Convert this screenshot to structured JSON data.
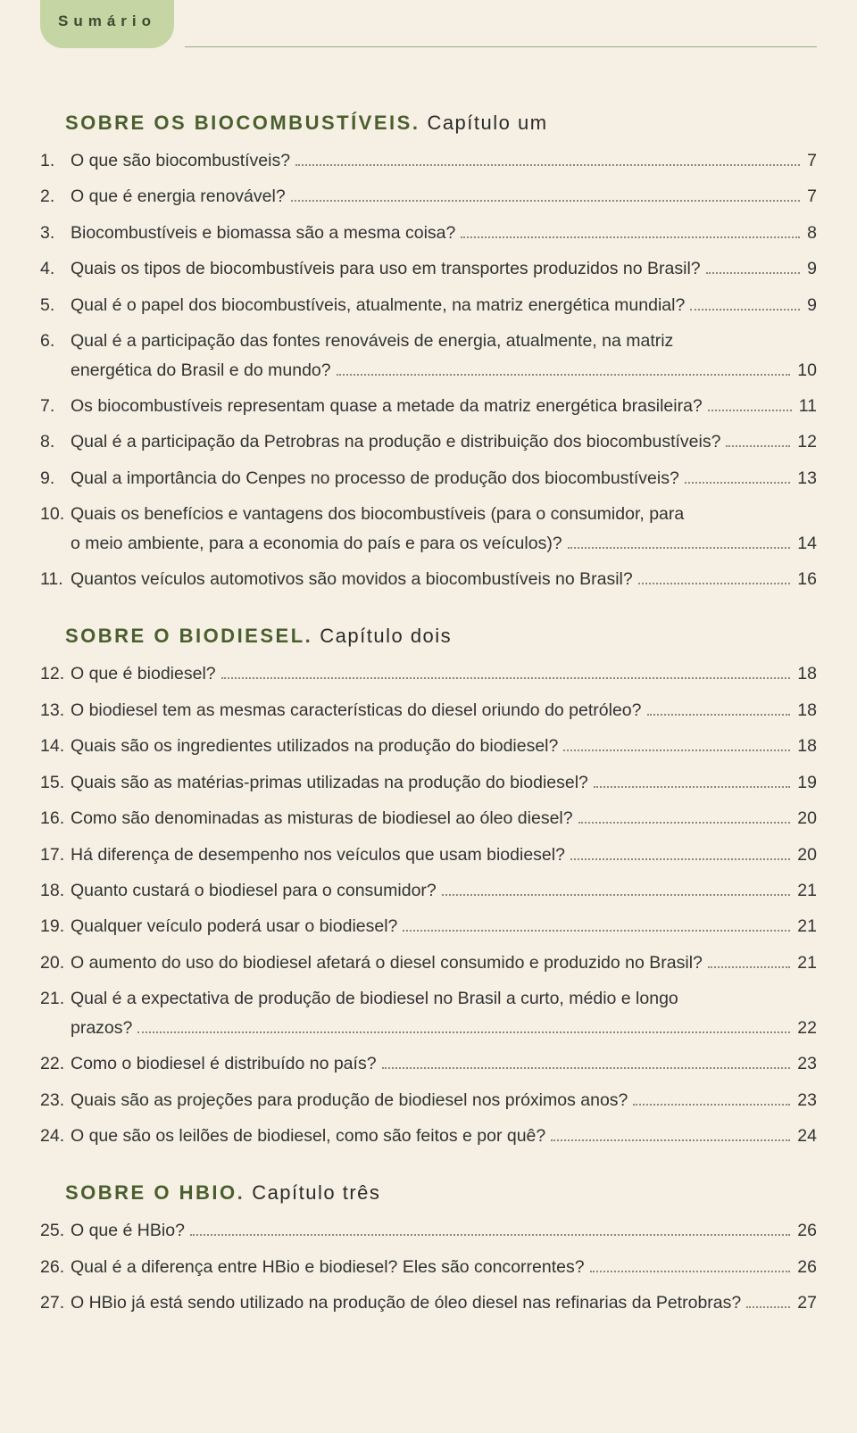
{
  "badge_label": "Sumário",
  "sections": [
    {
      "title_main": "SOBRE OS BIOCOMBUSTÍVEIS.",
      "title_sub": "Capítulo um",
      "items": [
        {
          "num": "1.",
          "lines": [
            "O que são biocombustíveis?"
          ],
          "page": "7"
        },
        {
          "num": "2.",
          "lines": [
            "O que é energia renovável?"
          ],
          "page": "7"
        },
        {
          "num": "3.",
          "lines": [
            "Biocombustíveis e biomassa são a mesma coisa?"
          ],
          "page": "8"
        },
        {
          "num": "4.",
          "lines": [
            "Quais os tipos de biocombustíveis para uso em transportes produzidos no Brasil?"
          ],
          "page": "9"
        },
        {
          "num": "5.",
          "lines": [
            "Qual é o papel dos biocombustíveis, atualmente, na matriz energética mundial?"
          ],
          "page": "9"
        },
        {
          "num": "6.",
          "lines": [
            "Qual é a participação das fontes renováveis de energia, atualmente, na matriz",
            "energética do Brasil e do mundo?"
          ],
          "page": "10"
        },
        {
          "num": "7.",
          "lines": [
            "Os biocombustíveis representam quase a metade da matriz energética brasileira?"
          ],
          "page": "11"
        },
        {
          "num": "8.",
          "lines": [
            "Qual é a participação da Petrobras na produção e distribuição dos biocombustíveis?"
          ],
          "page": "12"
        },
        {
          "num": "9.",
          "lines": [
            "Qual a importância do Cenpes no processo de produção dos biocombustíveis?"
          ],
          "page": "13"
        },
        {
          "num": "10.",
          "lines": [
            "Quais os benefícios e vantagens dos biocombustíveis (para o consumidor, para",
            "o meio ambiente, para a economia do país e para os veículos)?"
          ],
          "page": "14"
        },
        {
          "num": "11.",
          "lines": [
            "Quantos veículos automotivos são movidos a biocombustíveis no Brasil?"
          ],
          "page": "16"
        }
      ]
    },
    {
      "title_main": "SOBRE O BIODIESEL.",
      "title_sub": "Capítulo dois",
      "items": [
        {
          "num": "12.",
          "lines": [
            "O que é biodiesel?"
          ],
          "page": "18"
        },
        {
          "num": "13.",
          "lines": [
            "O biodiesel tem as mesmas características do diesel oriundo do petróleo?"
          ],
          "page": "18"
        },
        {
          "num": "14.",
          "lines": [
            "Quais são os ingredientes utilizados na produção do biodiesel?"
          ],
          "page": "18"
        },
        {
          "num": "15.",
          "lines": [
            "Quais são as matérias-primas utilizadas na produção do biodiesel?"
          ],
          "page": "19"
        },
        {
          "num": "16.",
          "lines": [
            "Como são denominadas as misturas de biodiesel ao óleo diesel?"
          ],
          "page": "20"
        },
        {
          "num": "17.",
          "lines": [
            "Há diferença de desempenho nos veículos que usam biodiesel?"
          ],
          "page": "20"
        },
        {
          "num": "18.",
          "lines": [
            "Quanto custará o biodiesel para o consumidor?"
          ],
          "page": "21"
        },
        {
          "num": "19.",
          "lines": [
            "Qualquer veículo poderá usar o biodiesel?"
          ],
          "page": "21"
        },
        {
          "num": "20.",
          "lines": [
            "O aumento do uso do biodiesel afetará o diesel consumido e produzido no Brasil?"
          ],
          "page": "21"
        },
        {
          "num": "21.",
          "lines": [
            "Qual é a expectativa de produção de biodiesel no Brasil a curto, médio e longo",
            "prazos?"
          ],
          "page": "22"
        },
        {
          "num": "22.",
          "lines": [
            "Como o biodiesel é distribuído no país?"
          ],
          "page": "23"
        },
        {
          "num": "23.",
          "lines": [
            "Quais são as projeções para produção de biodiesel nos próximos anos?"
          ],
          "page": "23"
        },
        {
          "num": "24.",
          "lines": [
            "O que são os leilões de biodiesel, como são feitos e por quê?"
          ],
          "page": "24"
        }
      ]
    },
    {
      "title_main": "SOBRE O HBIO.",
      "title_sub": "Capítulo três",
      "items": [
        {
          "num": "25.",
          "lines": [
            "O que é HBio?"
          ],
          "page": "26"
        },
        {
          "num": "26.",
          "lines": [
            "Qual é a diferença entre HBio e biodiesel? Eles são concorrentes?"
          ],
          "page": "26"
        },
        {
          "num": "27.",
          "lines": [
            "O HBio já está sendo utilizado na produção de óleo diesel nas refinarias da Petrobras?"
          ],
          "page": "27"
        }
      ]
    }
  ]
}
